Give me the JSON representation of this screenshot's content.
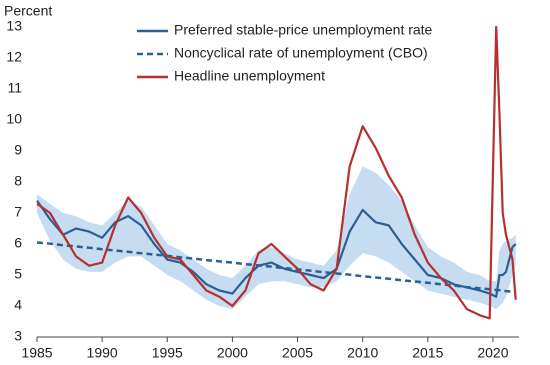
{
  "chart_data": {
    "type": "line",
    "y_label": "Percent",
    "x": [
      1985,
      1986,
      1987,
      1988,
      1989,
      1990,
      1991,
      1992,
      1993,
      1994,
      1995,
      1996,
      1997,
      1998,
      1999,
      2000,
      2001,
      2002,
      2003,
      2004,
      2005,
      2006,
      2007,
      2008,
      2009,
      2010,
      2011,
      2012,
      2013,
      2014,
      2015,
      2016,
      2017,
      2018,
      2019,
      2019.75,
      2020.25,
      2020.5,
      2020.75,
      2021,
      2021.5,
      2021.75
    ],
    "series": [
      {
        "name": "Preferred stable-price unemployment rate",
        "color": "#2b5f95",
        "dashed": false,
        "values": [
          7.4,
          6.8,
          6.3,
          6.5,
          6.4,
          6.2,
          6.7,
          6.9,
          6.6,
          6.0,
          5.5,
          5.4,
          5.1,
          4.7,
          4.5,
          4.4,
          4.9,
          5.3,
          5.4,
          5.2,
          5.1,
          5.0,
          4.9,
          5.2,
          6.4,
          7.1,
          6.7,
          6.6,
          6.0,
          5.5,
          5.0,
          4.9,
          4.7,
          4.6,
          4.5,
          4.4,
          4.3,
          5.0,
          5.0,
          5.1,
          5.9,
          6.0
        ]
      },
      {
        "name": "Noncyclical rate of unemployment (CBO)",
        "color": "#2b5f95",
        "dashed": true,
        "values": [
          6.05,
          6.01,
          5.96,
          5.92,
          5.88,
          5.83,
          5.79,
          5.75,
          5.7,
          5.66,
          5.62,
          5.57,
          5.53,
          5.48,
          5.44,
          5.4,
          5.35,
          5.31,
          5.27,
          5.22,
          5.18,
          5.14,
          5.09,
          5.05,
          5.01,
          4.96,
          4.92,
          4.88,
          4.83,
          4.79,
          4.75,
          4.7,
          4.66,
          4.61,
          4.57,
          4.54,
          4.52,
          4.51,
          4.5,
          4.48,
          4.46,
          4.45
        ]
      },
      {
        "name": "Headline unemployment",
        "color": "#b5302f",
        "dashed": false,
        "values": [
          7.3,
          7.0,
          6.3,
          5.6,
          5.3,
          5.4,
          6.6,
          7.5,
          7.0,
          6.2,
          5.6,
          5.5,
          5.0,
          4.5,
          4.3,
          4.0,
          4.5,
          5.7,
          6.0,
          5.6,
          5.2,
          4.7,
          4.5,
          5.2,
          8.5,
          9.8,
          9.1,
          8.2,
          7.5,
          6.3,
          5.4,
          4.9,
          4.5,
          3.9,
          3.7,
          3.6,
          13.0,
          10.2,
          7.0,
          6.3,
          5.5,
          4.2
        ]
      }
    ],
    "band": {
      "color": "#c6dcf1",
      "upper": [
        7.6,
        7.3,
        7.0,
        6.9,
        6.7,
        6.6,
        7.0,
        7.4,
        7.2,
        6.6,
        6.0,
        5.8,
        5.5,
        5.2,
        5.0,
        4.9,
        5.3,
        5.8,
        5.9,
        5.7,
        5.5,
        5.4,
        5.3,
        5.8,
        7.6,
        8.5,
        8.3,
        7.9,
        7.4,
        6.6,
        5.9,
        5.6,
        5.4,
        5.1,
        5.0,
        4.8,
        4.8,
        5.8,
        6.0,
        6.1,
        6.2,
        6.3
      ],
      "lower": [
        7.0,
        6.1,
        5.5,
        5.2,
        5.1,
        5.1,
        5.4,
        5.6,
        5.6,
        5.3,
        5.0,
        4.8,
        4.5,
        4.2,
        4.0,
        3.9,
        4.3,
        4.7,
        4.8,
        4.8,
        4.7,
        4.6,
        4.6,
        4.8,
        5.3,
        5.7,
        5.6,
        5.4,
        5.1,
        4.8,
        4.5,
        4.4,
        4.3,
        4.2,
        4.1,
        4.0,
        3.9,
        4.0,
        4.1,
        4.3,
        5.0,
        5.3
      ]
    },
    "xlim": [
      1985,
      2022
    ],
    "ylim": [
      3,
      13
    ],
    "xticks": [
      1985,
      1990,
      1995,
      2000,
      2005,
      2010,
      2015,
      2020
    ],
    "yticks": [
      3,
      4,
      5,
      6,
      7,
      8,
      9,
      10,
      11,
      12,
      13
    ],
    "axis_color": "#444"
  }
}
